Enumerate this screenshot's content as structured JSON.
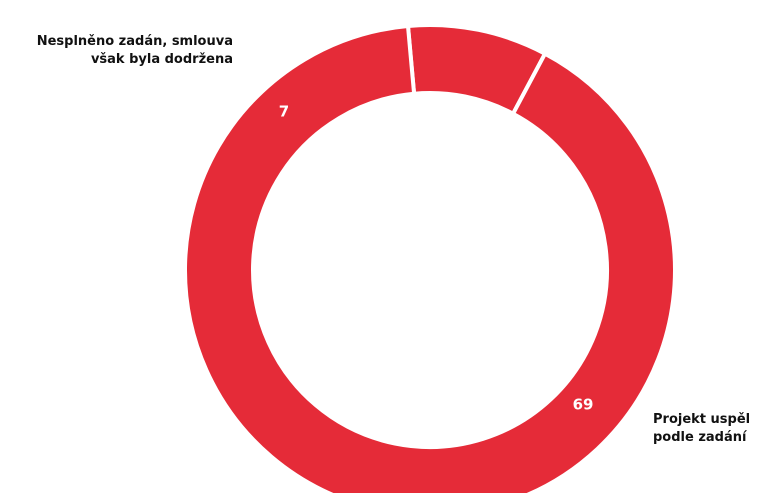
{
  "chart_data": {
    "type": "pie",
    "donut": true,
    "total": 76,
    "slices": [
      {
        "label_lines": [
          "Nesplněno zadán, smlouva",
          "však byla dodržena"
        ],
        "value": 7,
        "value_text": "7",
        "color": "#e52b38"
      },
      {
        "label_lines": [
          "Projekt uspěl",
          "podle zadání"
        ],
        "value": 69,
        "value_text": "69",
        "color": "#e52b38"
      }
    ],
    "separator_color": "#ffffff",
    "legend": "none",
    "grid": false
  }
}
